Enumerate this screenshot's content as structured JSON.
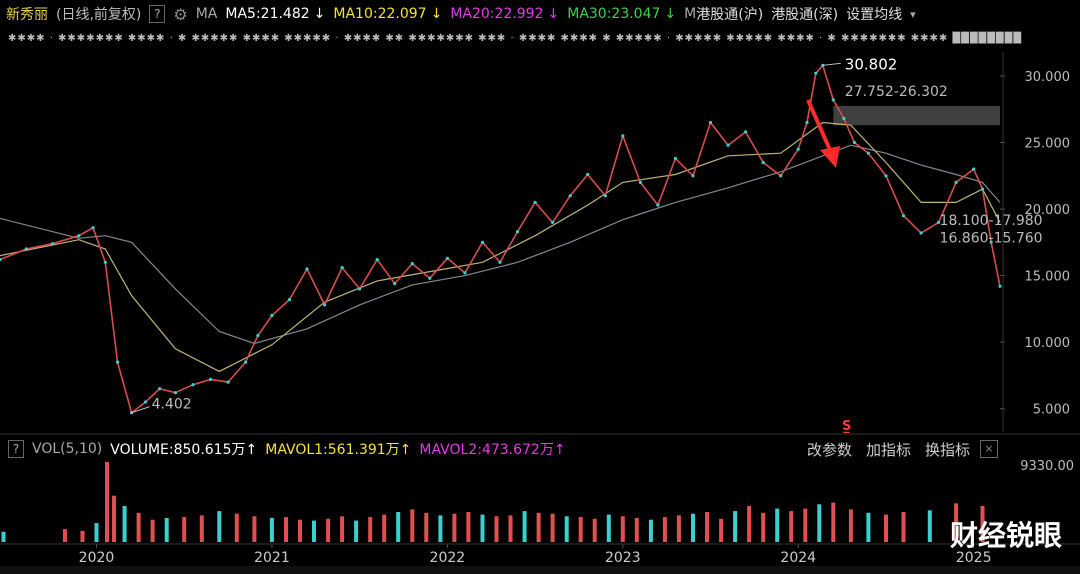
{
  "header": {
    "stock_name": "新秀丽",
    "mode": "(日线,前复权)",
    "help": "?",
    "ma_label": "MA",
    "ma": [
      {
        "label": "MA5:21.482",
        "arrow": "↓"
      },
      {
        "label": "MA10:22.097",
        "arrow": "↓"
      },
      {
        "label": "MA20:22.992",
        "arrow": "↓"
      },
      {
        "label": "MA30:23.047",
        "arrow": "↓"
      }
    ],
    "truncated": "M",
    "links": [
      "港股通(沪)",
      "港股通(深)",
      "设置均线"
    ],
    "dropdown": "▾"
  },
  "volume_header": {
    "title": "VOL(5,10)",
    "volume": "VOLUME:850.615万",
    "mavol1": "MAVOL1:561.391万",
    "mavol2": "MAVOL2:473.672万",
    "arrow": "↑",
    "buttons": [
      "改参数",
      "加指标",
      "换指标"
    ],
    "close": "×",
    "help": "?"
  },
  "watermark": "财经锐眼",
  "chart_data": {
    "type": "line",
    "title": "",
    "xlabel": "",
    "ylabel": "",
    "x_ticks": [
      "2020",
      "2021",
      "2022",
      "2023",
      "2024",
      "2025"
    ],
    "x_range": [
      2019.45,
      2025.15
    ],
    "price_axis": {
      "range": [
        3.4,
        31.8
      ],
      "ticks": [
        "30.000",
        "25.000",
        "20.000",
        "15.000",
        "10.000",
        "5.000"
      ]
    },
    "volume_axis": {
      "max": 9330,
      "label": "9330.00"
    },
    "series": [
      {
        "x": [
          2019.45,
          2019.6,
          2019.75,
          2019.9,
          2019.98,
          2020.05,
          2020.12,
          2020.2,
          2020.28,
          2020.36,
          2020.45,
          2020.55,
          2020.65,
          2020.75,
          2020.85,
          2020.92,
          2021.0,
          2021.1,
          2021.2,
          2021.3,
          2021.4,
          2021.5,
          2021.6,
          2021.7,
          2021.8,
          2021.9,
          2022.0,
          2022.1,
          2022.2,
          2022.3,
          2022.4,
          2022.5,
          2022.6,
          2022.7,
          2022.8,
          2022.9,
          2023.0,
          2023.1,
          2023.2,
          2023.3,
          2023.4,
          2023.5,
          2023.6,
          2023.7,
          2023.8,
          2023.9,
          2024.0,
          2024.05,
          2024.1,
          2024.14,
          2024.2,
          2024.26,
          2024.32,
          2024.4,
          2024.5,
          2024.6,
          2024.7,
          2024.8,
          2024.9,
          2025.0,
          2025.05,
          2025.1,
          2025.15
        ],
        "y": [
          16.2,
          17.0,
          17.4,
          18.0,
          18.6,
          16.0,
          8.5,
          4.7,
          5.5,
          6.5,
          6.2,
          6.8,
          7.2,
          7.0,
          8.5,
          10.5,
          12.0,
          13.2,
          15.5,
          12.8,
          15.6,
          14.0,
          16.2,
          14.4,
          15.9,
          14.8,
          16.3,
          15.2,
          17.5,
          16.0,
          18.3,
          20.5,
          19.0,
          21.0,
          22.6,
          21.0,
          25.5,
          22.0,
          20.3,
          23.8,
          22.5,
          26.5,
          24.8,
          25.8,
          23.5,
          22.5,
          24.5,
          26.5,
          30.2,
          30.8,
          28.2,
          26.8,
          25.0,
          24.2,
          22.5,
          19.5,
          18.2,
          19.0,
          22.0,
          23.0,
          21.5,
          17.5,
          14.2
        ]
      }
    ],
    "ma_series": [
      {
        "x": [
          2019.45,
          2019.9,
          2020.05,
          2020.2,
          2020.45,
          2020.7,
          2021.0,
          2021.3,
          2021.6,
          2021.9,
          2022.2,
          2022.5,
          2022.8,
          2023.0,
          2023.3,
          2023.6,
          2023.9,
          2024.14,
          2024.3,
          2024.5,
          2024.7,
          2024.9,
          2025.05,
          2025.15
        ],
        "y": [
          16.5,
          17.7,
          17.0,
          13.5,
          9.5,
          7.8,
          9.8,
          13.0,
          14.6,
          15.3,
          16.0,
          18.0,
          20.3,
          22.0,
          22.6,
          24.0,
          24.2,
          26.5,
          26.3,
          23.5,
          20.5,
          20.5,
          21.5,
          19.0
        ]
      },
      {
        "x": [
          2019.45,
          2019.9,
          2020.05,
          2020.2,
          2020.45,
          2020.7,
          2020.9,
          2021.2,
          2021.5,
          2021.8,
          2022.1,
          2022.4,
          2022.7,
          2023.0,
          2023.3,
          2023.6,
          2023.9,
          2024.14,
          2024.3,
          2024.5,
          2024.7,
          2024.9,
          2025.05,
          2025.15
        ],
        "y": [
          19.3,
          17.8,
          18.0,
          17.5,
          14.0,
          10.8,
          9.9,
          11.0,
          12.8,
          14.3,
          15.0,
          16.0,
          17.5,
          19.2,
          20.5,
          21.6,
          22.8,
          24.0,
          24.8,
          24.2,
          23.3,
          22.6,
          22.0,
          20.5
        ]
      }
    ],
    "annotations": [
      {
        "x": 2020.2,
        "y": 4.7,
        "text": "4.402"
      },
      {
        "x": 2024.14,
        "y": 30.8,
        "text": "30.802"
      },
      {
        "x": 2024.14,
        "y": 28.8,
        "text": "27.752-26.302"
      },
      {
        "x": 2024.68,
        "y": 19.1,
        "text": "18.100-17.980"
      },
      {
        "x": 2024.68,
        "y": 17.8,
        "text": "16.860-15.760"
      }
    ],
    "resistance_band": [
      26.3,
      27.75
    ],
    "volume": [
      1200,
      1500,
      1300,
      2200,
      9330,
      5400,
      4200,
      3400,
      2600,
      2800,
      2900,
      3100,
      3600,
      3300,
      3000,
      2800,
      2900,
      2600,
      2500,
      2700,
      3000,
      2500,
      2900,
      3200,
      3500,
      3800,
      3400,
      3100,
      3300,
      3500,
      3200,
      3000,
      3100,
      3600,
      3400,
      3300,
      3000,
      2900,
      2700,
      3200,
      3000,
      2800,
      2600,
      2900,
      3100,
      3300,
      3500,
      2700,
      3600,
      4200,
      3400,
      3900,
      3600,
      3900,
      4400,
      4600,
      3800,
      3400,
      3200,
      3500,
      3700,
      4500,
      4200
    ],
    "volume_x": [
      2019.47,
      2019.82,
      2019.92,
      2020.0,
      2020.06,
      2020.1,
      2020.16,
      2020.24,
      2020.32,
      2020.4,
      2020.5,
      2020.6,
      2020.7,
      2020.8,
      2020.9,
      2021.0,
      2021.08,
      2021.16,
      2021.24,
      2021.32,
      2021.4,
      2021.48,
      2021.56,
      2021.64,
      2021.72,
      2021.8,
      2021.88,
      2021.96,
      2022.04,
      2022.12,
      2022.2,
      2022.28,
      2022.36,
      2022.44,
      2022.52,
      2022.6,
      2022.68,
      2022.76,
      2022.84,
      2022.92,
      2023.0,
      2023.08,
      2023.16,
      2023.24,
      2023.32,
      2023.4,
      2023.48,
      2023.56,
      2023.64,
      2023.72,
      2023.8,
      2023.88,
      2023.96,
      2024.04,
      2024.12,
      2024.2,
      2024.3,
      2024.4,
      2024.5,
      2024.6,
      2024.75,
      2024.9,
      2025.05
    ]
  }
}
